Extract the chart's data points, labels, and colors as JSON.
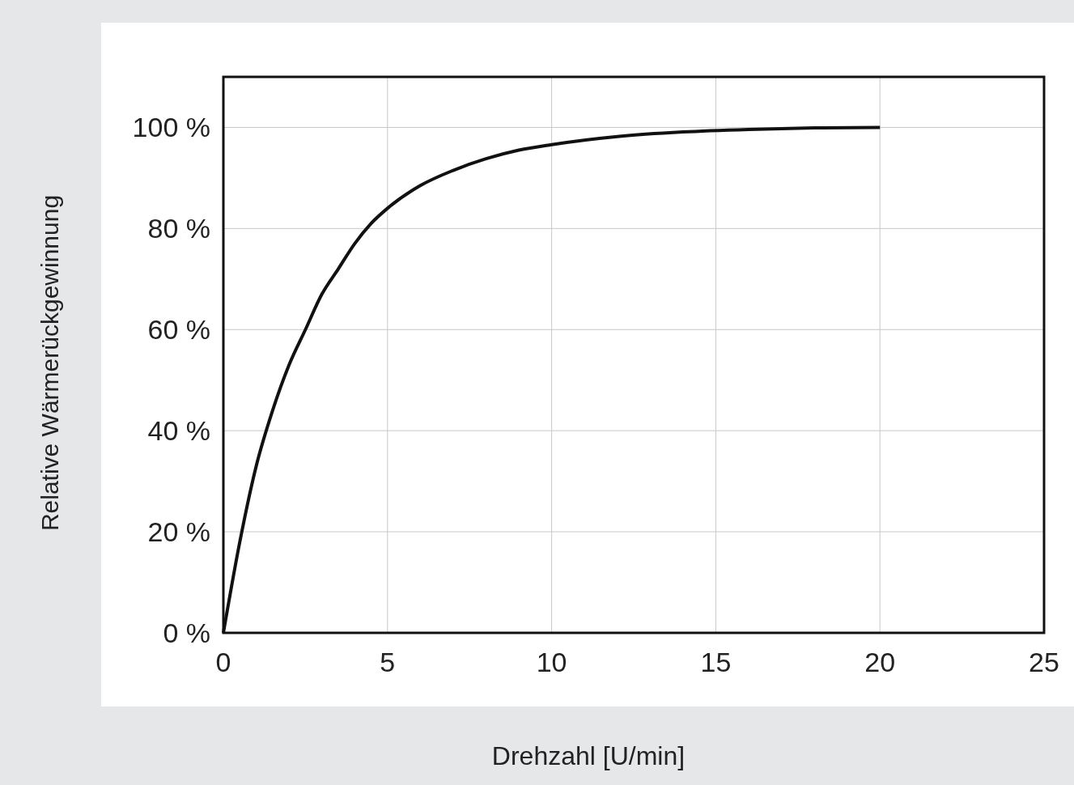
{
  "chart_data": {
    "type": "line",
    "xlabel": "Drehzahl [U/min]",
    "ylabel": "Relative Wärmerückgewinnung",
    "series": [
      {
        "color": "#111111",
        "x": [
          0,
          0.5,
          1,
          1.5,
          2,
          2.5,
          3,
          3.5,
          4,
          4.5,
          5,
          6,
          7,
          8,
          9,
          10,
          12,
          14,
          16,
          18,
          20
        ],
        "values": [
          0,
          18,
          33,
          44,
          53,
          60,
          67,
          72,
          77,
          81,
          84,
          88.5,
          91.5,
          93.8,
          95.5,
          96.6,
          98.2,
          99.1,
          99.6,
          99.9,
          100
        ]
      }
    ],
    "xlim": [
      0,
      25
    ],
    "xticks": [
      0,
      5,
      10,
      15,
      20,
      25
    ],
    "ylim": [
      0,
      110
    ],
    "yticks": [
      {
        "value": 0,
        "label": "0 %"
      },
      {
        "value": 20,
        "label": "20 %"
      },
      {
        "value": 40,
        "label": "40 %"
      },
      {
        "value": 60,
        "label": "60 %"
      },
      {
        "value": 80,
        "label": "80 %"
      },
      {
        "value": 100,
        "label": "100 %"
      }
    ],
    "grid": true,
    "marker": "none",
    "line_style": "solid"
  }
}
